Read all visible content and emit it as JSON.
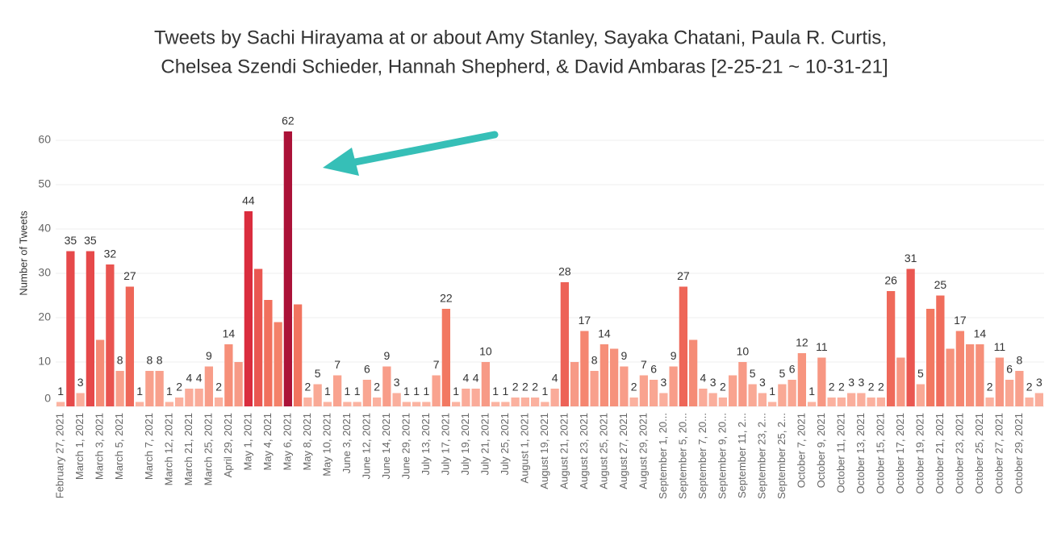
{
  "chart_data": {
    "type": "bar",
    "title": [
      "Tweets by Sachi Hirayama at or about Amy Stanley, Sayaka Chatani, Paula R. Curtis,",
      "Chelsea Szendi Schieder, Hannah Shepherd, & David Ambaras [2-25-21 ~ 10-31-21]"
    ],
    "y_label": "Number of Tweets",
    "categories": [
      "February 27, 2021",
      null,
      "March 1, 2021",
      null,
      "March 3, 2021",
      null,
      "March 5, 2021",
      null,
      null,
      "March 7, 2021",
      null,
      "March 12, 2021",
      null,
      "March 21, 2021",
      null,
      "March 25, 2021",
      null,
      "April 29, 2021",
      null,
      "May 1, 2021",
      null,
      "May 4, 2021",
      null,
      "May 6, 2021",
      null,
      "May 8, 2021",
      null,
      "May 10, 2021",
      null,
      "June 3, 2021",
      null,
      "June 12, 2021",
      null,
      "June 14, 2021",
      null,
      "June 29, 2021",
      null,
      "July 13, 2021",
      null,
      "July 17, 2021",
      null,
      "July 19, 2021",
      null,
      "July 21, 2021",
      null,
      "July 25, 2021",
      null,
      "August 1, 2021",
      null,
      "August 19, 2021",
      null,
      "August 21, 2021",
      null,
      "August 23, 2021",
      null,
      "August 25, 2021",
      null,
      "August 27, 2021",
      null,
      "August 29, 2021",
      null,
      "September 1, 20...",
      null,
      "September 5, 20...",
      null,
      "September 7, 20...",
      null,
      "September 9, 20...",
      null,
      "September 11, 2...",
      null,
      "September 23, 2...",
      null,
      "September 25, 2...",
      null,
      "October 7, 2021",
      null,
      "October 9, 2021",
      null,
      "October 11, 2021",
      null,
      "October 13, 2021",
      null,
      "October 15, 2021",
      null,
      "October 17, 2021",
      null,
      "October 19, 2021",
      null,
      "October 21, 2021",
      null,
      "October 23, 2021",
      null,
      "October 25, 2021",
      null,
      "October 27, 2021",
      null,
      "October 29, 2021",
      null,
      null
    ],
    "values": [
      1,
      35,
      3,
      35,
      15,
      32,
      8,
      27,
      1,
      8,
      8,
      1,
      2,
      4,
      4,
      9,
      2,
      14,
      10,
      44,
      31,
      24,
      19,
      62,
      23,
      2,
      5,
      1,
      7,
      1,
      1,
      6,
      2,
      9,
      3,
      1,
      1,
      1,
      7,
      22,
      1,
      4,
      4,
      10,
      1,
      1,
      2,
      2,
      2,
      1,
      4,
      28,
      10,
      17,
      8,
      14,
      13,
      9,
      2,
      7,
      6,
      3,
      9,
      27,
      15,
      4,
      3,
      2,
      7,
      10,
      5,
      3,
      1,
      5,
      6,
      12,
      1,
      11,
      2,
      2,
      3,
      3,
      2,
      2,
      26,
      11,
      31,
      5,
      22,
      25,
      13,
      17,
      14,
      14,
      2,
      11,
      6,
      8,
      2,
      3
    ],
    "value_labels": [
      "1",
      "35",
      "3",
      "35",
      null,
      "32",
      "8",
      "27",
      "1",
      "8",
      "8",
      "1",
      "2",
      "4",
      "4",
      "9",
      "2",
      "14",
      null,
      "44",
      null,
      null,
      null,
      "62",
      null,
      "2",
      "5",
      "1",
      "7",
      "1",
      "1",
      "6",
      "2",
      "9",
      "3",
      "1",
      "1",
      "1",
      "7",
      "22",
      "1",
      "4",
      "4",
      "10",
      "1",
      "1",
      "2",
      "2",
      "2",
      "1",
      "4",
      "28",
      null,
      "17",
      "8",
      "14",
      null,
      "9",
      "2",
      "7",
      "6",
      "3",
      "9",
      "27",
      null,
      "4",
      "3",
      "2",
      null,
      "10",
      "5",
      "3",
      "1",
      "5",
      "6",
      "12",
      "1",
      "11",
      "2",
      "2",
      "3",
      "3",
      "2",
      "2",
      "26",
      null,
      "31",
      "5",
      null,
      "25",
      null,
      "17",
      null,
      "14",
      "2",
      "11",
      "6",
      "8",
      "2",
      "3"
    ],
    "color_scale": [
      "#fbb4a2",
      "#f37a62",
      "#e0313f",
      "#ab1238"
    ],
    "ylim": [
      0,
      65
    ],
    "yticks": [
      0,
      10,
      20,
      30,
      40,
      50,
      60
    ],
    "grid": true
  }
}
